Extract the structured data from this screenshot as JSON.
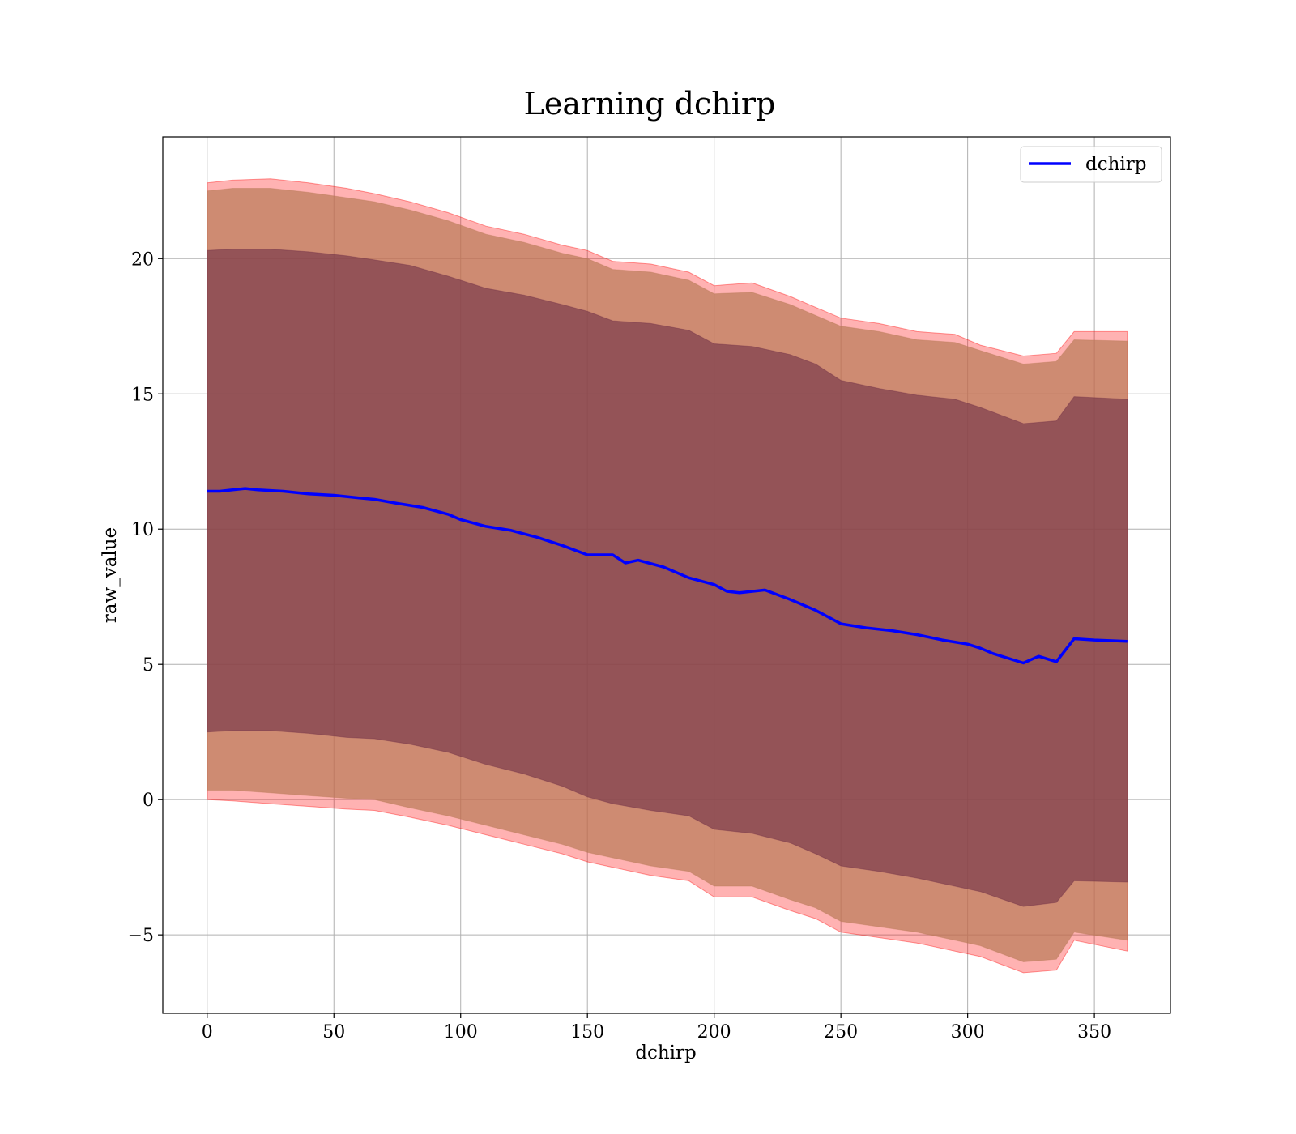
{
  "chart_data": {
    "type": "line",
    "title": "Learning dchirp",
    "xlabel": "dchirp",
    "ylabel": "raw_value",
    "xlim": [
      -17.5,
      380
    ],
    "ylim": [
      -7.9,
      24.5
    ],
    "x_ticks": [
      0,
      50,
      100,
      150,
      200,
      250,
      300,
      350
    ],
    "y_ticks": [
      -5,
      0,
      5,
      10,
      15,
      20
    ],
    "x_tick_labels": [
      "0",
      "50",
      "100",
      "150",
      "200",
      "250",
      "300",
      "350"
    ],
    "y_tick_labels": [
      "−5",
      "0",
      "5",
      "10",
      "15",
      "20"
    ],
    "grid": true,
    "legend": {
      "position": "top-right",
      "entries": [
        "dchirp"
      ]
    },
    "colors": {
      "line": "#0000ff",
      "outer_band": "#ff0000",
      "middle_band": "#b97a57",
      "inner_band": "#6e2e46"
    },
    "series": [
      {
        "name": "dchirp",
        "x": [
          0,
          5,
          10,
          15,
          20,
          30,
          40,
          50,
          60,
          66,
          75,
          85,
          95,
          100,
          110,
          120,
          130,
          140,
          150,
          160,
          165,
          170,
          180,
          190,
          200,
          205,
          210,
          220,
          230,
          240,
          250,
          260,
          270,
          280,
          290,
          300,
          305,
          310,
          322,
          328,
          335,
          342,
          350,
          363
        ],
        "values": [
          11.4,
          11.4,
          11.45,
          11.5,
          11.45,
          11.4,
          11.3,
          11.25,
          11.15,
          11.1,
          10.95,
          10.8,
          10.55,
          10.35,
          10.1,
          9.95,
          9.7,
          9.4,
          9.05,
          9.05,
          8.75,
          8.85,
          8.6,
          8.2,
          7.95,
          7.7,
          7.65,
          7.75,
          7.4,
          7.0,
          6.5,
          6.35,
          6.25,
          6.1,
          5.9,
          5.75,
          5.6,
          5.4,
          5.05,
          5.3,
          5.1,
          5.95,
          5.9,
          5.85
        ]
      }
    ],
    "bands": [
      {
        "x": [
          0,
          10,
          25,
          40,
          55,
          66,
          80,
          95,
          110,
          125,
          140,
          150,
          160,
          175,
          190,
          200,
          215,
          230,
          240,
          250,
          265,
          280,
          295,
          305,
          322,
          335,
          342,
          363
        ],
        "upper": [
          22.8,
          22.9,
          22.95,
          22.8,
          22.6,
          22.4,
          22.1,
          21.7,
          21.2,
          20.9,
          20.5,
          20.3,
          19.9,
          19.8,
          19.5,
          19.0,
          19.1,
          18.6,
          18.2,
          17.8,
          17.6,
          17.3,
          17.2,
          16.8,
          16.4,
          16.5,
          17.3,
          17.3
        ],
        "lower": [
          0.0,
          -0.05,
          -0.15,
          -0.25,
          -0.35,
          -0.4,
          -0.65,
          -0.95,
          -1.3,
          -1.65,
          -2.0,
          -2.3,
          -2.5,
          -2.8,
          -3.0,
          -3.6,
          -3.6,
          -4.1,
          -4.4,
          -4.9,
          -5.1,
          -5.3,
          -5.6,
          -5.8,
          -6.4,
          -6.3,
          -5.2,
          -5.6
        ]
      },
      {
        "x": [
          0,
          10,
          25,
          40,
          55,
          66,
          80,
          95,
          110,
          125,
          140,
          150,
          160,
          175,
          190,
          200,
          215,
          230,
          240,
          250,
          265,
          280,
          295,
          305,
          322,
          335,
          342,
          363
        ],
        "upper": [
          22.5,
          22.6,
          22.6,
          22.45,
          22.25,
          22.1,
          21.8,
          21.4,
          20.9,
          20.6,
          20.2,
          20.0,
          19.6,
          19.5,
          19.2,
          18.7,
          18.75,
          18.3,
          17.9,
          17.5,
          17.3,
          17.0,
          16.9,
          16.6,
          16.1,
          16.2,
          17.0,
          16.95
        ],
        "lower": [
          0.35,
          0.35,
          0.25,
          0.15,
          0.05,
          0.0,
          -0.3,
          -0.6,
          -0.95,
          -1.3,
          -1.65,
          -1.95,
          -2.15,
          -2.45,
          -2.65,
          -3.2,
          -3.2,
          -3.7,
          -4.0,
          -4.5,
          -4.7,
          -4.9,
          -5.2,
          -5.4,
          -6.0,
          -5.9,
          -4.9,
          -5.2
        ]
      },
      {
        "x": [
          0,
          10,
          25,
          40,
          55,
          66,
          80,
          95,
          110,
          125,
          140,
          150,
          160,
          175,
          190,
          200,
          215,
          230,
          240,
          250,
          265,
          280,
          295,
          305,
          322,
          335,
          342,
          363
        ],
        "upper": [
          20.3,
          20.35,
          20.35,
          20.25,
          20.1,
          19.95,
          19.75,
          19.35,
          18.9,
          18.65,
          18.3,
          18.05,
          17.7,
          17.6,
          17.35,
          16.85,
          16.75,
          16.45,
          16.1,
          15.5,
          15.2,
          14.95,
          14.8,
          14.5,
          13.9,
          14.0,
          14.9,
          14.8
        ],
        "lower": [
          2.5,
          2.55,
          2.55,
          2.45,
          2.3,
          2.25,
          2.05,
          1.75,
          1.3,
          0.95,
          0.5,
          0.1,
          -0.15,
          -0.4,
          -0.6,
          -1.1,
          -1.25,
          -1.6,
          -2.0,
          -2.45,
          -2.65,
          -2.9,
          -3.2,
          -3.4,
          -3.95,
          -3.8,
          -3.0,
          -3.05
        ]
      }
    ]
  }
}
